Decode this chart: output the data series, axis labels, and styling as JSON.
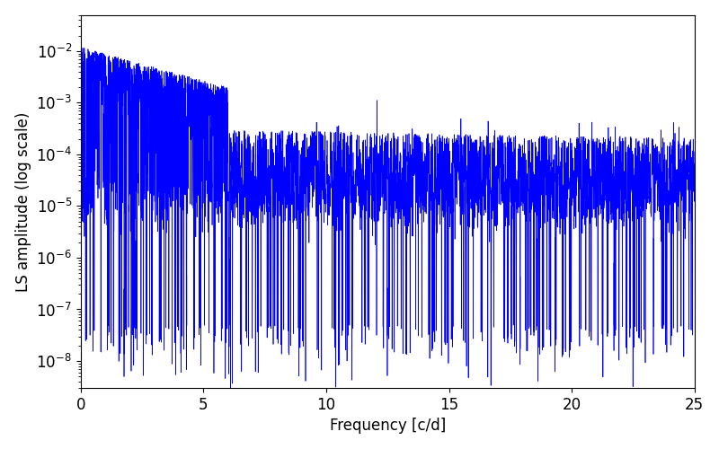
{
  "title": "",
  "xlabel": "Frequency [c/d]",
  "ylabel": "LS amplitude (log scale)",
  "xlim": [
    0,
    25
  ],
  "ylim": [
    3e-09,
    0.05
  ],
  "line_color": "blue",
  "line_width": 0.5,
  "background_color": "#ffffff",
  "seed": 42,
  "n_points": 6000,
  "freq_max": 25.0,
  "tick_labelsize": 12,
  "label_fontsize": 12
}
